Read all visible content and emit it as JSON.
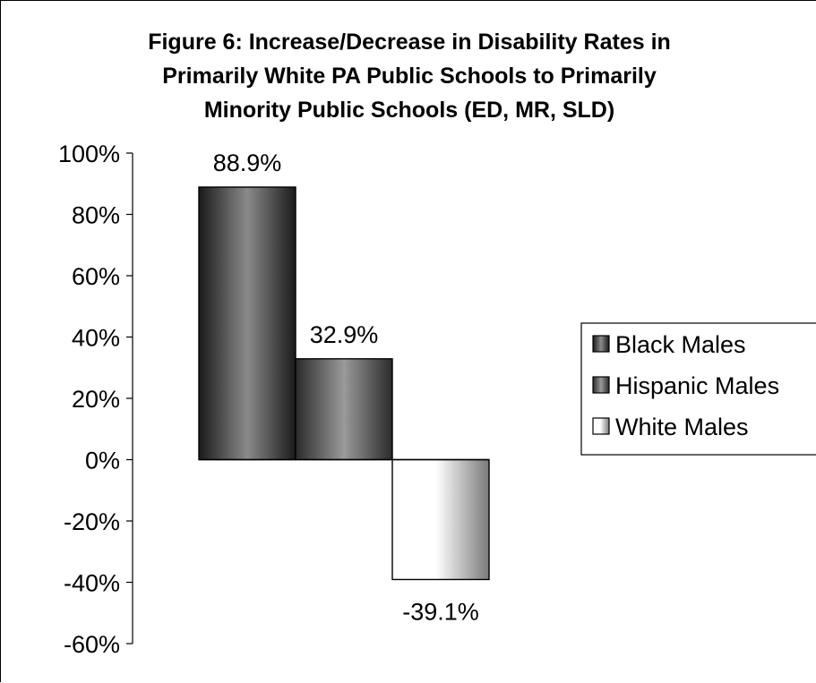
{
  "chart_data": {
    "type": "bar",
    "title_lines": [
      "Figure 6: Increase/Decrease in Disability Rates in",
      "Primarily White PA Public Schools to Primarily",
      "Minority Public Schools (ED, MR, SLD)"
    ],
    "categories": [
      ""
    ],
    "series": [
      {
        "name": "Black Males",
        "values": [
          88.9
        ],
        "label": "88.9%",
        "color": "#2b2b2b"
      },
      {
        "name": "Hispanic Males",
        "values": [
          32.9
        ],
        "label": "32.9%",
        "color": "#3a3a3a"
      },
      {
        "name": "White Males",
        "values": [
          -39.1
        ],
        "label": "-39.1%",
        "color": "#f4f4f4"
      }
    ],
    "y_ticks": [
      "100%",
      "80%",
      "60%",
      "40%",
      "20%",
      "0%",
      "-20%",
      "-40%",
      "-60%"
    ],
    "ylim": [
      -60,
      100
    ],
    "grid": false,
    "legend_position": "right"
  }
}
